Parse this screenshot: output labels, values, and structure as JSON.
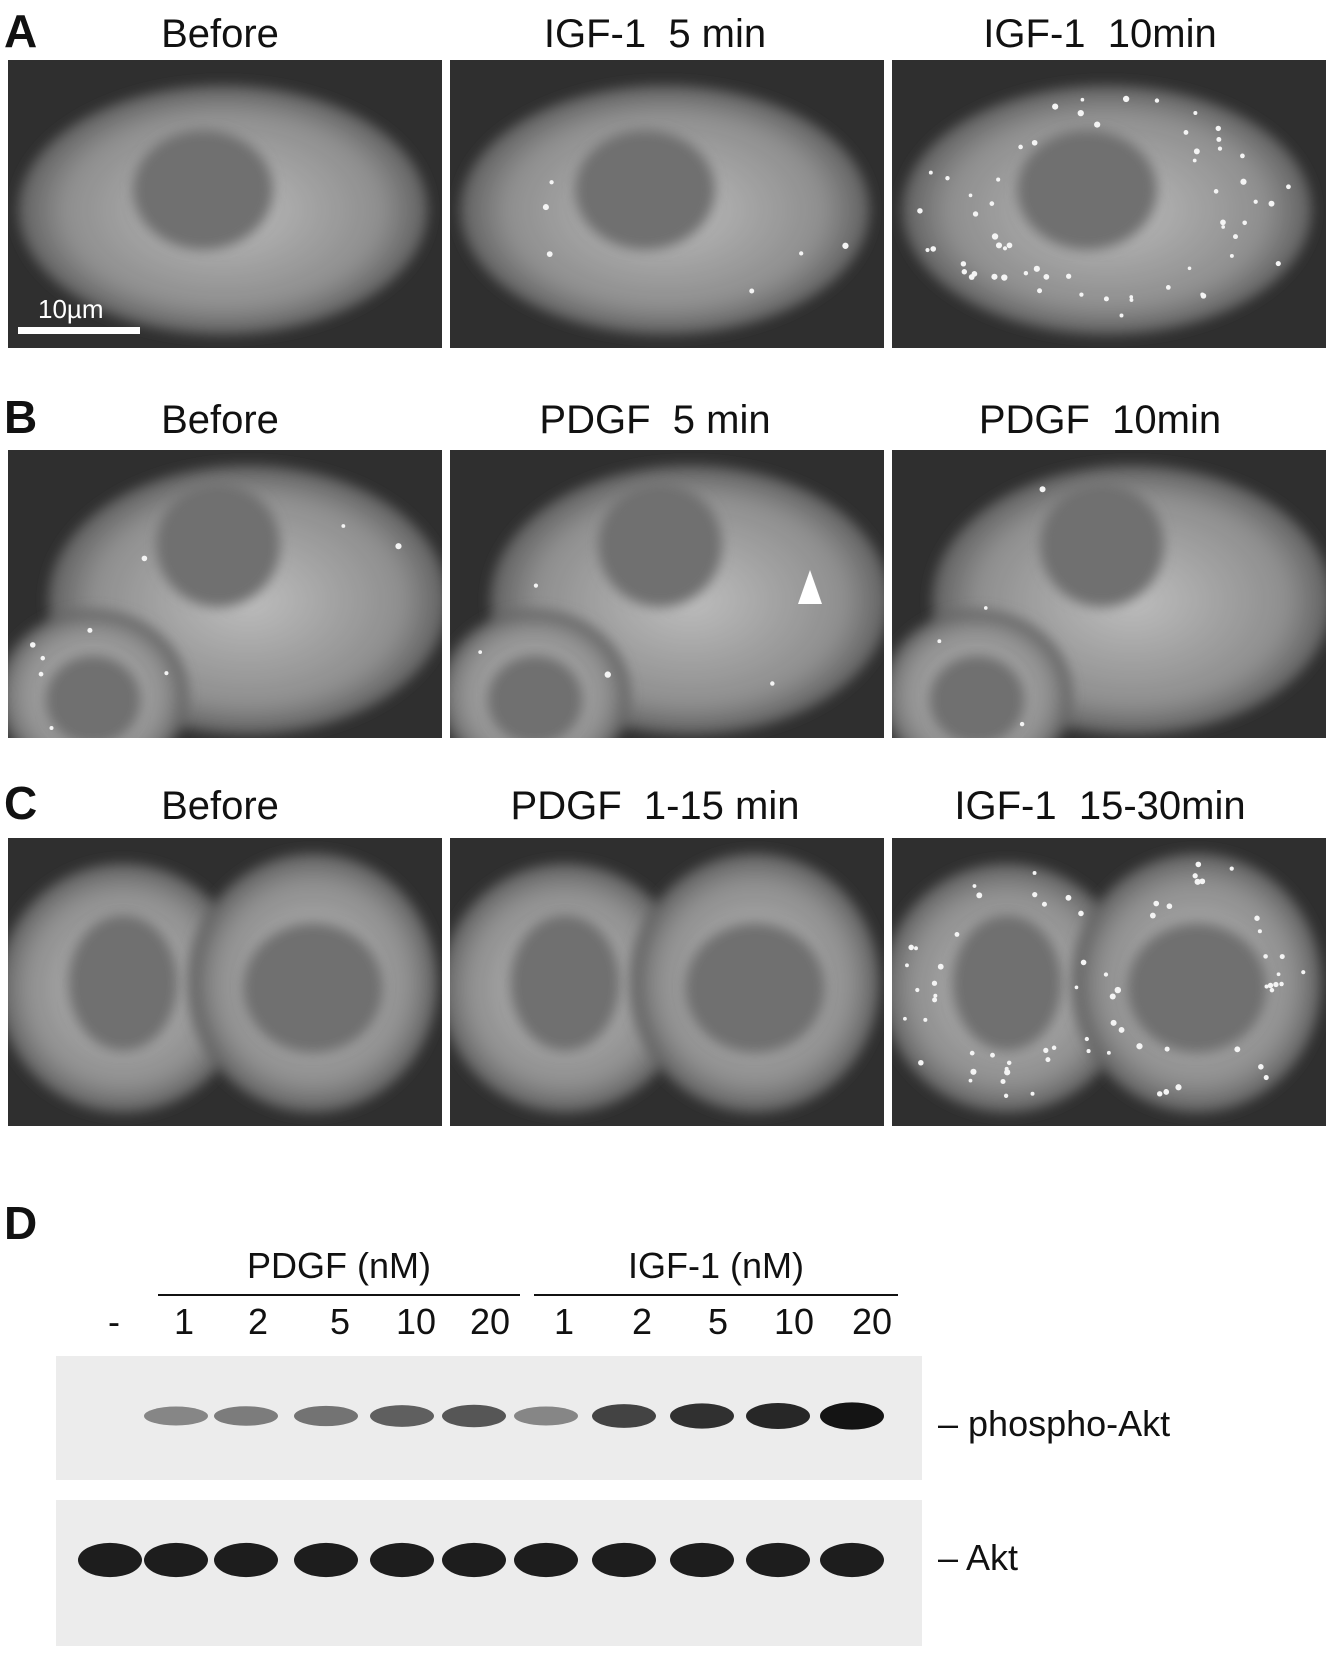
{
  "panels": {
    "A": {
      "letter": "A",
      "titles": [
        "Before",
        "IGF-1  5 min",
        "IGF-1  10min"
      ],
      "scale_bar_label": "10µm"
    },
    "B": {
      "letter": "B",
      "titles": [
        "Before",
        "PDGF  5 min",
        "PDGF  10min"
      ]
    },
    "C": {
      "letter": "C",
      "titles": [
        "Before",
        "PDGF  1-15 min",
        "IGF-1  15-30min"
      ]
    },
    "D": {
      "letter": "D",
      "control_lane": "-",
      "groups": [
        {
          "label": "PDGF (nM)",
          "lanes": [
            "1",
            "2",
            "5",
            "10",
            "20"
          ]
        },
        {
          "label": "IGF-1 (nM)",
          "lanes": [
            "1",
            "2",
            "5",
            "10",
            "20"
          ]
        }
      ],
      "band_labels": [
        "– phospho-Akt",
        "– Akt"
      ],
      "phospho_akt_intensity": [
        0,
        0.35,
        0.4,
        0.45,
        0.55,
        0.6,
        0.35,
        0.7,
        0.8,
        0.85,
        0.95
      ],
      "akt_intensity": [
        0.9,
        0.9,
        0.9,
        0.9,
        0.9,
        0.9,
        0.9,
        0.9,
        0.9,
        0.9,
        0.9
      ]
    }
  }
}
